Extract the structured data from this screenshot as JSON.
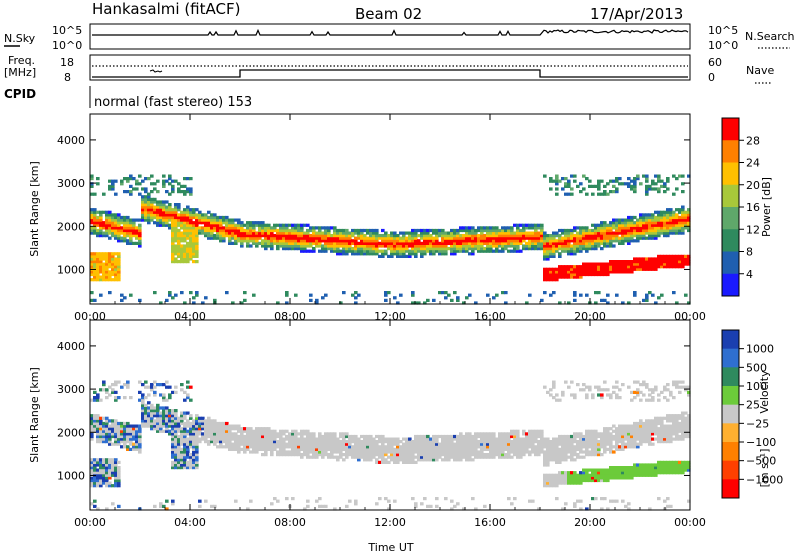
{
  "header": {
    "station": "Hankasalmi (fitACF)",
    "beam": "Beam 02",
    "date": "17/Apr/2013"
  },
  "status_panels": {
    "nsky_label": "N.Sky",
    "nsky_ticks": [
      "10^5",
      "10^0"
    ],
    "nsearch_label": "N.Search",
    "nsearch_ticks": [
      "10^5",
      "10^0"
    ],
    "freq_label_line1": "Freq.",
    "freq_label_line2": "[MHz]",
    "freq_ticks": [
      "18",
      "8"
    ],
    "nave_label": "Nave",
    "nave_ticks": [
      "60",
      "0"
    ],
    "cpid_label": "CPID",
    "cpid_text": "normal (fast stereo) 153"
  },
  "chart_data": [
    {
      "type": "heatmap",
      "name": "power",
      "ylabel": "Slant Range [km]",
      "yticks": [
        1000,
        2000,
        3000,
        4000
      ],
      "ylim": [
        200,
        4600
      ],
      "xticks": [
        "00:00",
        "04:00",
        "08:00",
        "12:00",
        "16:00",
        "20:00",
        "00:00"
      ],
      "xlim_hours": [
        0,
        24
      ],
      "colorbar": {
        "label": "Power [dB]",
        "ticks": [
          "4",
          "8",
          "12",
          "16",
          "20",
          "24",
          "28"
        ],
        "colors": [
          "#1a1aff",
          "#1f5fb0",
          "#2f8a5e",
          "#5fa86a",
          "#a8c83a",
          "#ffc000",
          "#ff8000",
          "#ff0000"
        ]
      }
    },
    {
      "type": "heatmap",
      "name": "velocity",
      "ylabel": "Slant Range [km]",
      "yticks": [
        1000,
        2000,
        3000,
        4000
      ],
      "ylim": [
        200,
        4600
      ],
      "xticks": [
        "00:00",
        "04:00",
        "08:00",
        "12:00",
        "16:00",
        "20:00",
        "00:00"
      ],
      "xlabel": "Time UT",
      "xlim_hours": [
        0,
        24
      ],
      "colorbar": {
        "label": "Velocity",
        "label_unit": "[m s⁻¹]",
        "ticks": [
          "1000",
          "500",
          "100",
          "25",
          "−25",
          "−100",
          "−500",
          "−1000"
        ],
        "colors": [
          "#1a3fb0",
          "#2f6fd0",
          "#2f8a5e",
          "#6ccb3a",
          "#c8c8c8",
          "#ffb030",
          "#ff8000",
          "#ff4000",
          "#ff0000"
        ]
      }
    }
  ]
}
